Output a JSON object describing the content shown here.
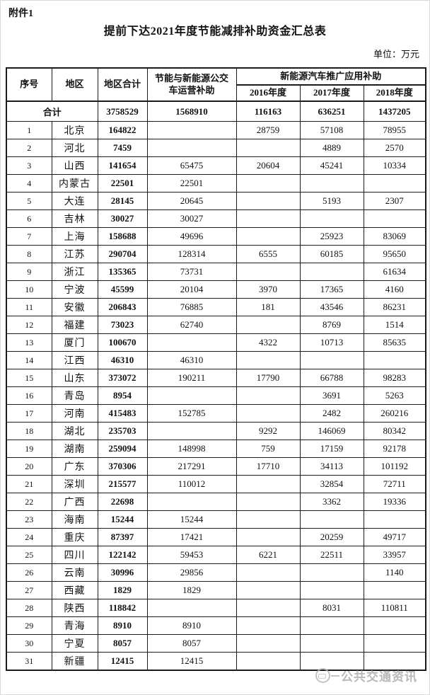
{
  "page": {
    "attachment_label": "附件1",
    "title": "提前下达2021年度节能减排补助资金汇总表",
    "unit_label": "单位：万元",
    "watermark": "公共交通资讯"
  },
  "colors": {
    "table_border": "#1a1a1a",
    "watermark_gray": "#a8a8a8",
    "background": "#ffffff"
  },
  "table": {
    "headers": {
      "col_seq": "序号",
      "col_region": "地区",
      "col_region_total": "地区合计",
      "col_bus_subsidy": "节能与新能源公交车运营补助",
      "col_nev_group": "新能源汽车推广应用补助",
      "col_2016": "2016年度",
      "col_2017": "2017年度",
      "col_2018": "2018年度"
    },
    "total_row": {
      "label": "合计",
      "region_total": "3758529",
      "bus": "1568910",
      "y2016": "116163",
      "y2017": "636251",
      "y2018": "1437205"
    },
    "rows": [
      {
        "seq": "1",
        "region": "北京",
        "total": "164822",
        "bus": "",
        "y2016": "28759",
        "y2017": "57108",
        "y2018": "78955"
      },
      {
        "seq": "2",
        "region": "河北",
        "total": "7459",
        "bus": "",
        "y2016": "",
        "y2017": "4889",
        "y2018": "2570"
      },
      {
        "seq": "3",
        "region": "山西",
        "total": "141654",
        "bus": "65475",
        "y2016": "20604",
        "y2017": "45241",
        "y2018": "10334"
      },
      {
        "seq": "4",
        "region": "内蒙古",
        "total": "22501",
        "bus": "22501",
        "y2016": "",
        "y2017": "",
        "y2018": ""
      },
      {
        "seq": "5",
        "region": "大连",
        "total": "28145",
        "bus": "20645",
        "y2016": "",
        "y2017": "5193",
        "y2018": "2307"
      },
      {
        "seq": "6",
        "region": "吉林",
        "total": "30027",
        "bus": "30027",
        "y2016": "",
        "y2017": "",
        "y2018": ""
      },
      {
        "seq": "7",
        "region": "上海",
        "total": "158688",
        "bus": "49696",
        "y2016": "",
        "y2017": "25923",
        "y2018": "83069"
      },
      {
        "seq": "8",
        "region": "江苏",
        "total": "290704",
        "bus": "128314",
        "y2016": "6555",
        "y2017": "60185",
        "y2018": "95650"
      },
      {
        "seq": "9",
        "region": "浙江",
        "total": "135365",
        "bus": "73731",
        "y2016": "",
        "y2017": "",
        "y2018": "61634"
      },
      {
        "seq": "10",
        "region": "宁波",
        "total": "45599",
        "bus": "20104",
        "y2016": "3970",
        "y2017": "17365",
        "y2018": "4160"
      },
      {
        "seq": "11",
        "region": "安徽",
        "total": "206843",
        "bus": "76885",
        "y2016": "181",
        "y2017": "43546",
        "y2018": "86231"
      },
      {
        "seq": "12",
        "region": "福建",
        "total": "73023",
        "bus": "62740",
        "y2016": "",
        "y2017": "8769",
        "y2018": "1514"
      },
      {
        "seq": "13",
        "region": "厦门",
        "total": "100670",
        "bus": "",
        "y2016": "4322",
        "y2017": "10713",
        "y2018": "85635"
      },
      {
        "seq": "14",
        "region": "江西",
        "total": "46310",
        "bus": "46310",
        "y2016": "",
        "y2017": "",
        "y2018": ""
      },
      {
        "seq": "15",
        "region": "山东",
        "total": "373072",
        "bus": "190211",
        "y2016": "17790",
        "y2017": "66788",
        "y2018": "98283"
      },
      {
        "seq": "16",
        "region": "青岛",
        "total": "8954",
        "bus": "",
        "y2016": "",
        "y2017": "3691",
        "y2018": "5263"
      },
      {
        "seq": "17",
        "region": "河南",
        "total": "415483",
        "bus": "152785",
        "y2016": "",
        "y2017": "2482",
        "y2018": "260216"
      },
      {
        "seq": "18",
        "region": "湖北",
        "total": "235703",
        "bus": "",
        "y2016": "9292",
        "y2017": "146069",
        "y2018": "80342"
      },
      {
        "seq": "19",
        "region": "湖南",
        "total": "259094",
        "bus": "148998",
        "y2016": "759",
        "y2017": "17159",
        "y2018": "92178"
      },
      {
        "seq": "20",
        "region": "广东",
        "total": "370306",
        "bus": "217291",
        "y2016": "17710",
        "y2017": "34113",
        "y2018": "101192"
      },
      {
        "seq": "21",
        "region": "深圳",
        "total": "215577",
        "bus": "110012",
        "y2016": "",
        "y2017": "32854",
        "y2018": "72711"
      },
      {
        "seq": "22",
        "region": "广西",
        "total": "22698",
        "bus": "",
        "y2016": "",
        "y2017": "3362",
        "y2018": "19336"
      },
      {
        "seq": "23",
        "region": "海南",
        "total": "15244",
        "bus": "15244",
        "y2016": "",
        "y2017": "",
        "y2018": ""
      },
      {
        "seq": "24",
        "region": "重庆",
        "total": "87397",
        "bus": "17421",
        "y2016": "",
        "y2017": "20259",
        "y2018": "49717"
      },
      {
        "seq": "25",
        "region": "四川",
        "total": "122142",
        "bus": "59453",
        "y2016": "6221",
        "y2017": "22511",
        "y2018": "33957"
      },
      {
        "seq": "26",
        "region": "云南",
        "total": "30996",
        "bus": "29856",
        "y2016": "",
        "y2017": "",
        "y2018": "1140"
      },
      {
        "seq": "27",
        "region": "西藏",
        "total": "1829",
        "bus": "1829",
        "y2016": "",
        "y2017": "",
        "y2018": ""
      },
      {
        "seq": "28",
        "region": "陕西",
        "total": "118842",
        "bus": "",
        "y2016": "",
        "y2017": "8031",
        "y2018": "110811"
      },
      {
        "seq": "29",
        "region": "青海",
        "total": "8910",
        "bus": "8910",
        "y2016": "",
        "y2017": "",
        "y2018": ""
      },
      {
        "seq": "30",
        "region": "宁夏",
        "total": "8057",
        "bus": "8057",
        "y2016": "",
        "y2017": "",
        "y2018": ""
      },
      {
        "seq": "31",
        "region": "新疆",
        "total": "12415",
        "bus": "12415",
        "y2016": "",
        "y2017": "",
        "y2018": ""
      }
    ]
  }
}
